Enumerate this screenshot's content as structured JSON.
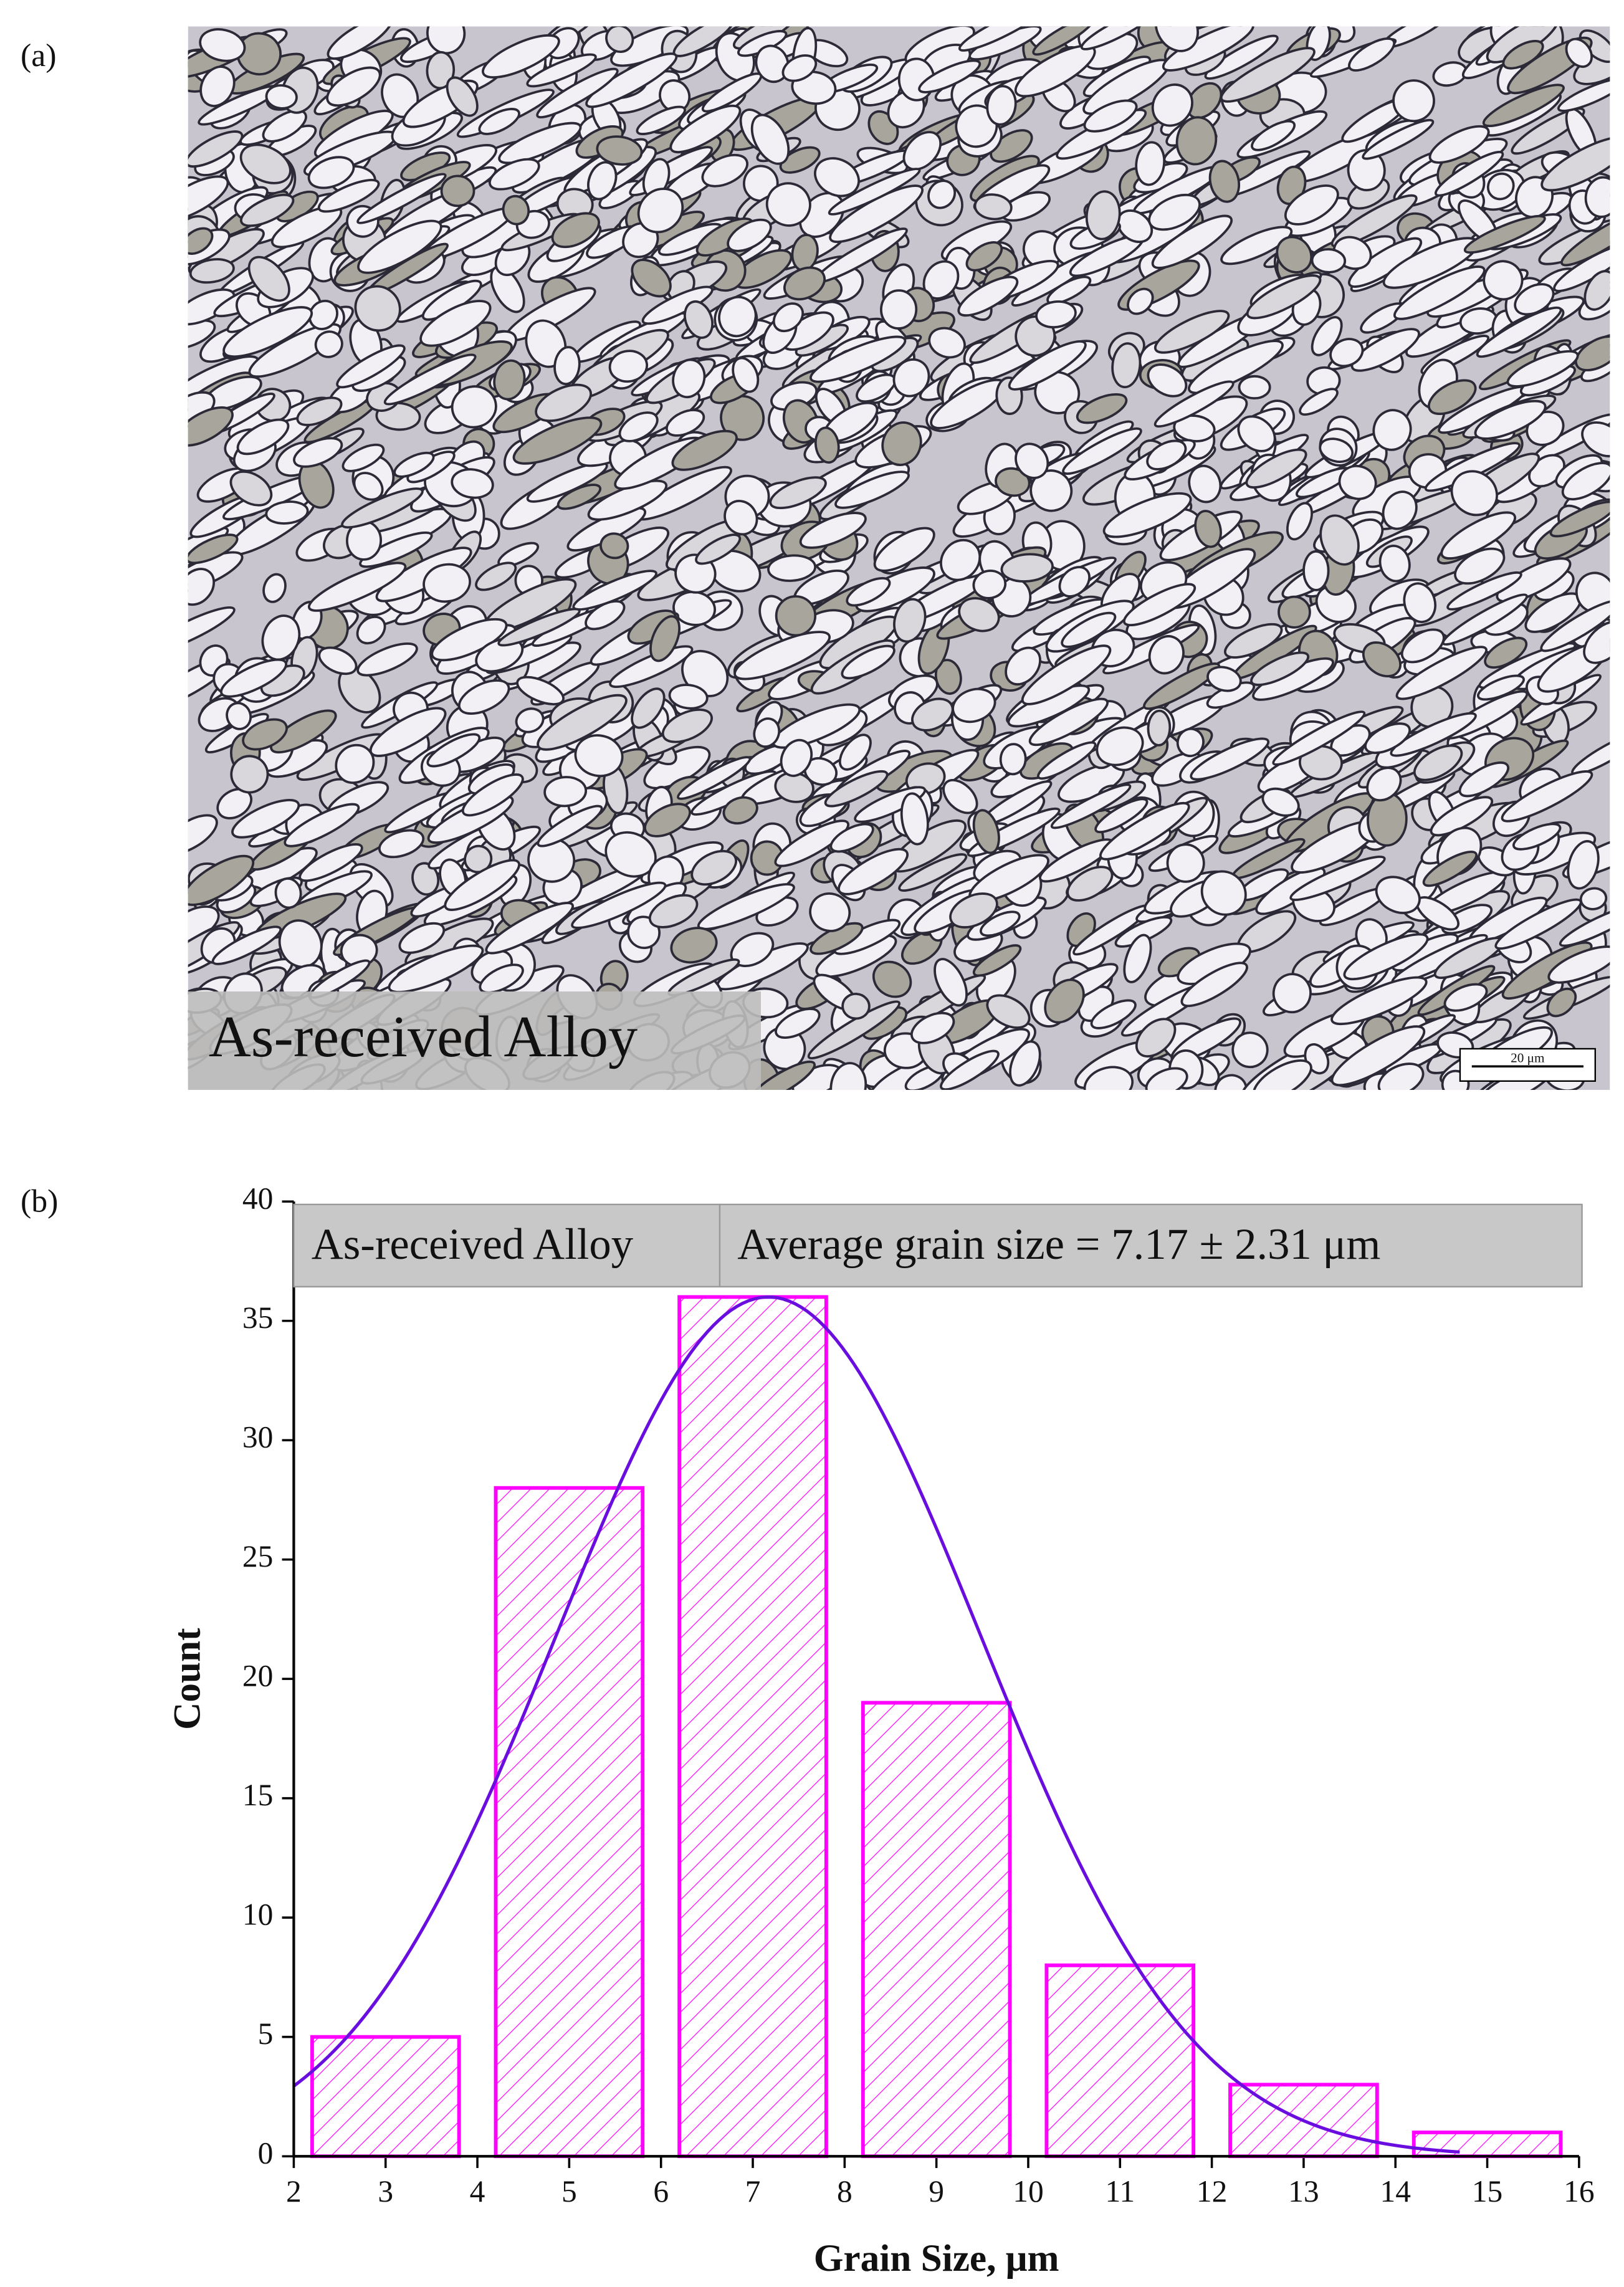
{
  "panel_a": {
    "label": "(a)",
    "image_caption": "As-received Alloy",
    "scale_bar": "20 μm"
  },
  "chart_data": {
    "type": "histogram",
    "label": "(b)",
    "annotation": {
      "left": "As-received Alloy",
      "right": "Average grain size = 7.17 ± 2.31 μm"
    },
    "x_label": "Grain Size, μm",
    "y_label": "Count",
    "bins": [
      2,
      4,
      6,
      8,
      10,
      12,
      14,
      16
    ],
    "values": [
      5,
      28,
      36,
      19,
      8,
      3,
      1
    ],
    "color": "#ff00ff",
    "fit": {
      "mean": 7.17,
      "sd": 2.31,
      "peak": 36,
      "range": [
        2,
        14.7
      ],
      "color": "#6a0ee0"
    },
    "xlim": [
      2,
      16
    ],
    "xticks": [
      2,
      3,
      4,
      5,
      6,
      7,
      8,
      9,
      10,
      11,
      12,
      13,
      14,
      15,
      16
    ],
    "ylim": [
      0,
      40
    ],
    "yticks": [
      0,
      5,
      10,
      15,
      20,
      25,
      30,
      35,
      40
    ]
  }
}
